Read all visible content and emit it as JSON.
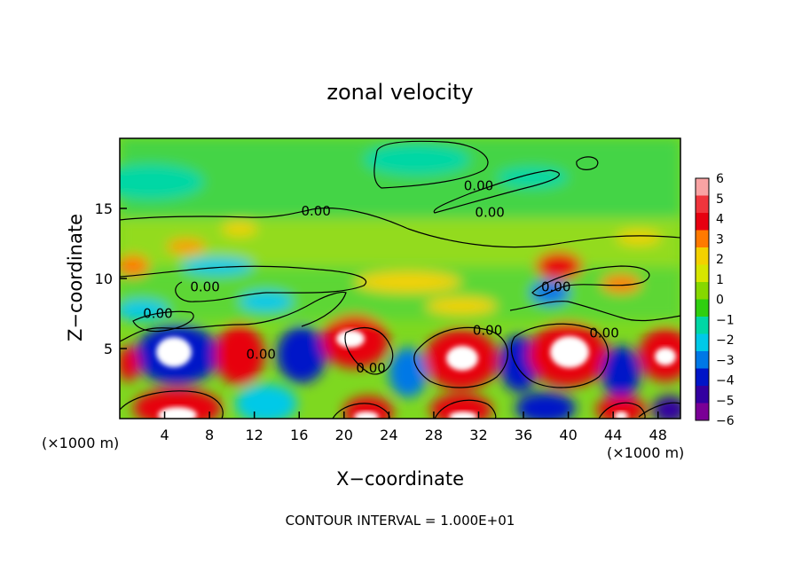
{
  "chart_data": {
    "type": "heatmap",
    "title": "zonal velocity",
    "xlabel": "X−coordinate",
    "ylabel": "Z−coordinate",
    "x_unit_left": "(×1000 m)",
    "x_unit_right": "(×1000 m)",
    "xlim": [
      0,
      50
    ],
    "ylim": [
      0,
      20
    ],
    "x_ticks": [
      4,
      8,
      12,
      16,
      20,
      24,
      28,
      32,
      36,
      40,
      44,
      48
    ],
    "x_tick_labels": [
      "4",
      "8",
      "12",
      "16",
      "20",
      "24",
      "28",
      "32",
      "36",
      "40",
      "44",
      "48"
    ],
    "y_ticks": [
      5,
      10,
      15
    ],
    "y_tick_labels": [
      "5",
      "10",
      "15"
    ],
    "colorbar": {
      "min": -6,
      "max": 6,
      "labels": [
        "6",
        "5",
        "4",
        "3",
        "2",
        "1",
        "0",
        "−1",
        "−2",
        "−3",
        "−4",
        "−5",
        "−6"
      ],
      "colors": [
        "#f9a3a3",
        "#f0353c",
        "#e70010",
        "#ff7a00",
        "#f3d100",
        "#d7e600",
        "#86d800",
        "#2fcf10",
        "#00d7a5",
        "#00c9e8",
        "#0078e6",
        "#0015c8",
        "#3300a0",
        "#7a0096"
      ]
    },
    "contour_label": "0.00",
    "contour_labels": [
      {
        "x": 17.5,
        "y": 14.8
      },
      {
        "x": 32,
        "y": 16.6
      },
      {
        "x": 33,
        "y": 14.7
      },
      {
        "x": 7.6,
        "y": 9.4
      },
      {
        "x": 3.4,
        "y": 7.5
      },
      {
        "x": 38.9,
        "y": 9.4
      },
      {
        "x": 32.8,
        "y": 6.3
      },
      {
        "x": 43.2,
        "y": 6.1
      },
      {
        "x": 12.6,
        "y": 4.6
      },
      {
        "x": 22.4,
        "y": 3.6
      }
    ],
    "contour_interval_text": "CONTOUR INTERVAL = 1.000E+01"
  }
}
